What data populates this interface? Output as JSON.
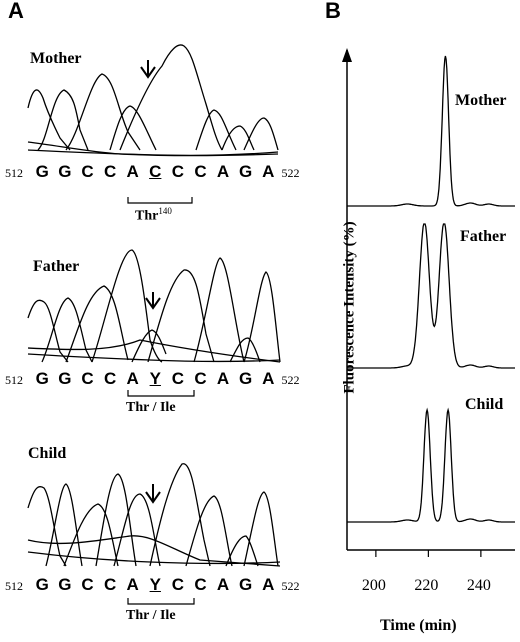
{
  "panel_a": {
    "letter": "A",
    "traces": [
      {
        "name": "Mother",
        "start": "512",
        "end": "522",
        "bases": [
          "G",
          "G",
          "C",
          "C",
          "A",
          "C",
          "C",
          "C",
          "A",
          "G",
          "A"
        ],
        "underline_index": 5,
        "codon_label": "Thr",
        "codon_sup": "140"
      },
      {
        "name": "Father",
        "start": "512",
        "end": "522",
        "bases": [
          "G",
          "G",
          "C",
          "C",
          "A",
          "Y",
          "C",
          "C",
          "A",
          "G",
          "A"
        ],
        "underline_index": 5,
        "codon_label": "Thr / Ile",
        "codon_sup": ""
      },
      {
        "name": "Child",
        "start": "512",
        "end": "522",
        "bases": [
          "G",
          "G",
          "C",
          "C",
          "A",
          "Y",
          "C",
          "C",
          "A",
          "G",
          "A"
        ],
        "underline_index": 5,
        "codon_label": "Thr / Ile",
        "codon_sup": ""
      }
    ]
  },
  "panel_b": {
    "letter": "B",
    "ylabel": "Fluorescence Intensity (%)",
    "xlabel": "Time (min)",
    "labels": {
      "mother": "Mother",
      "father": "Father",
      "child": "Child"
    }
  },
  "chart_data": [
    {
      "type": "line",
      "title": "",
      "xlabel": "Time (min)",
      "ylabel": "Fluorescence Intensity (%)",
      "x_ticks": [
        "200",
        "220",
        "240"
      ],
      "xlim": [
        189,
        253
      ],
      "series": [
        {
          "name": "Mother",
          "peaks_at_min": [
            226.5
          ]
        },
        {
          "name": "Father",
          "peaks_at_min": [
            218.5,
            226.0
          ]
        },
        {
          "name": "Child",
          "peaks_at_min": [
            219.5,
            227.5
          ]
        }
      ]
    }
  ]
}
